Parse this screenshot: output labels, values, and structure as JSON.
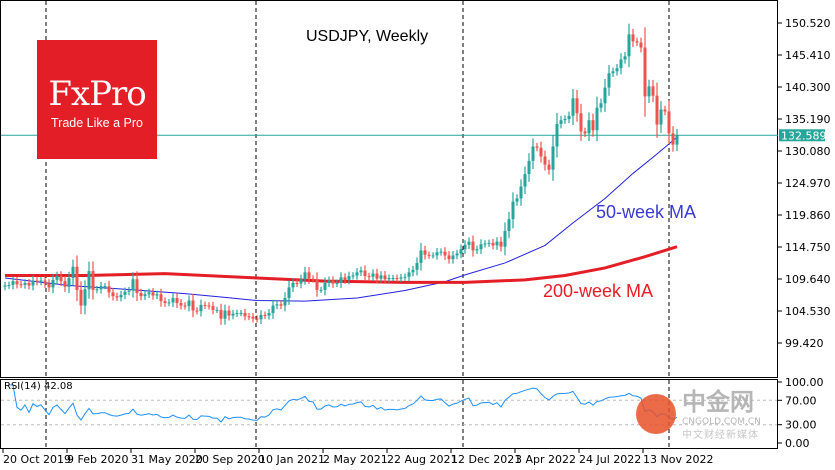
{
  "logo": {
    "brand": "FxPro",
    "tagline": "Trade Like a Pro",
    "color": "#e41e26"
  },
  "watermark": {
    "name": "中金网",
    "domain": "CNGOLD.COM.CN",
    "subtitle": "中文财经新媒体"
  },
  "chart_data": {
    "type": "candlestick",
    "title": "USDJPY, Weekly",
    "symbol": "USDJPY",
    "timeframe": "Weekly",
    "current_price": "132.589",
    "x_start": "20 Oct 2019",
    "x_step": "1 week",
    "x_tick_labels": [
      "20 Oct 2019",
      "9 Feb 2020",
      "31 May 2020",
      "20 Sep 2020",
      "10 Jan 2021",
      "2 May 2021",
      "22 Aug 2021",
      "12 Dec 2021",
      "3 Apr 2022",
      "24 Jul 2022",
      "13 Nov 2022"
    ],
    "y_tick_labels": [
      "150.520",
      "145.410",
      "140.300",
      "135.190",
      "130.080",
      "124.970",
      "119.860",
      "114.750",
      "109.640",
      "104.530",
      "99.420"
    ],
    "ylim": [
      96.5,
      153.9
    ],
    "grid": false,
    "closes": [
      108.6,
      108.7,
      109.3,
      108.8,
      108.7,
      109.0,
      108.6,
      109.4,
      109.2,
      109.4,
      108.9,
      108.3,
      109.5,
      110.1,
      109.3,
      108.4,
      109.8,
      111.6,
      107.9,
      105.4,
      108.0,
      110.9,
      107.9,
      108.0,
      108.5,
      108.5,
      107.5,
      106.9,
      106.7,
      107.1,
      107.6,
      107.8,
      109.6,
      107.4,
      106.9,
      107.2,
      107.5,
      107.0,
      107.2,
      106.1,
      105.8,
      105.9,
      106.6,
      105.8,
      105.4,
      105.3,
      106.2,
      104.6,
      104.5,
      105.5,
      105.4,
      105.3,
      104.7,
      104.7,
      103.3,
      104.6,
      103.8,
      104.1,
      104.2,
      104.2,
      103.7,
      103.6,
      103.3,
      103.2,
      103.9,
      103.8,
      104.2,
      105.4,
      105.6,
      105.4,
      106.6,
      108.3,
      109.0,
      108.9,
      109.6,
      110.7,
      109.7,
      109.6,
      107.9,
      107.9,
      109.0,
      109.4,
      108.9,
      109.0,
      109.9,
      109.5,
      110.1,
      110.2,
      110.7,
      111.0,
      110.1,
      110.0,
      110.5,
      109.7,
      110.2,
      109.6,
      109.8,
      109.8,
      109.7,
      109.9,
      110.0,
      110.7,
      111.1,
      112.2,
      114.2,
      113.5,
      113.4,
      113.4,
      113.9,
      114.0,
      113.4,
      112.8,
      113.4,
      113.7,
      114.4,
      115.1,
      115.6,
      114.2,
      114.4,
      115.2,
      115.3,
      115.4,
      115.0,
      115.6,
      114.8,
      117.3,
      119.2,
      122.0,
      122.5,
      124.4,
      126.4,
      128.5,
      130.8,
      130.6,
      129.2,
      127.9,
      127.1,
      130.8,
      134.4,
      135.0,
      135.2,
      135.7,
      138.5,
      136.1,
      133.2,
      132.9,
      135.0,
      133.4,
      137.0,
      137.7,
      140.2,
      142.5,
      142.8,
      143.3,
      144.7,
      145.2,
      148.7,
      147.6,
      147.4,
      146.6,
      138.8,
      140.4,
      138.9,
      134.3,
      136.7,
      136.4,
      132.9,
      131.1,
      132.589
    ],
    "bull_color": "#26a69a",
    "bear_color": "#ef5350",
    "series": [
      {
        "name": "50-week MA",
        "color": "#2020e0",
        "points": [
          [
            0,
            109.8
          ],
          [
            16,
            108.6
          ],
          [
            30,
            108.0
          ],
          [
            45,
            107.3
          ],
          [
            55,
            106.7
          ],
          [
            63,
            106.2
          ],
          [
            75,
            106.1
          ],
          [
            88,
            106.6
          ],
          [
            100,
            107.8
          ],
          [
            110,
            109.2
          ],
          [
            115,
            110.3
          ],
          [
            125,
            112.2
          ],
          [
            135,
            115.0
          ],
          [
            142,
            118.6
          ],
          [
            150,
            122.5
          ],
          [
            157,
            126.5
          ],
          [
            163,
            129.6
          ],
          [
            168,
            132.3
          ]
        ]
      },
      {
        "name": "200-week MA",
        "color": "#e41e26",
        "points": [
          [
            0,
            110.2
          ],
          [
            20,
            110.2
          ],
          [
            40,
            110.5
          ],
          [
            63,
            109.8
          ],
          [
            80,
            109.3
          ],
          [
            100,
            109.1
          ],
          [
            115,
            109.1
          ],
          [
            130,
            109.5
          ],
          [
            140,
            110.2
          ],
          [
            150,
            111.4
          ],
          [
            160,
            113.2
          ],
          [
            168,
            114.8
          ]
        ]
      }
    ],
    "ma50_label": "50-week MA",
    "ma200_label": "200-week MA",
    "rsi": {
      "label": "RSI(14) 42.08",
      "period": 14,
      "ylim": [
        0,
        100
      ],
      "levels": [
        30,
        70
      ],
      "y_tick_labels": [
        "100.00",
        "70.00",
        "30.00",
        "0.00"
      ],
      "color": "#1e90ff"
    }
  }
}
